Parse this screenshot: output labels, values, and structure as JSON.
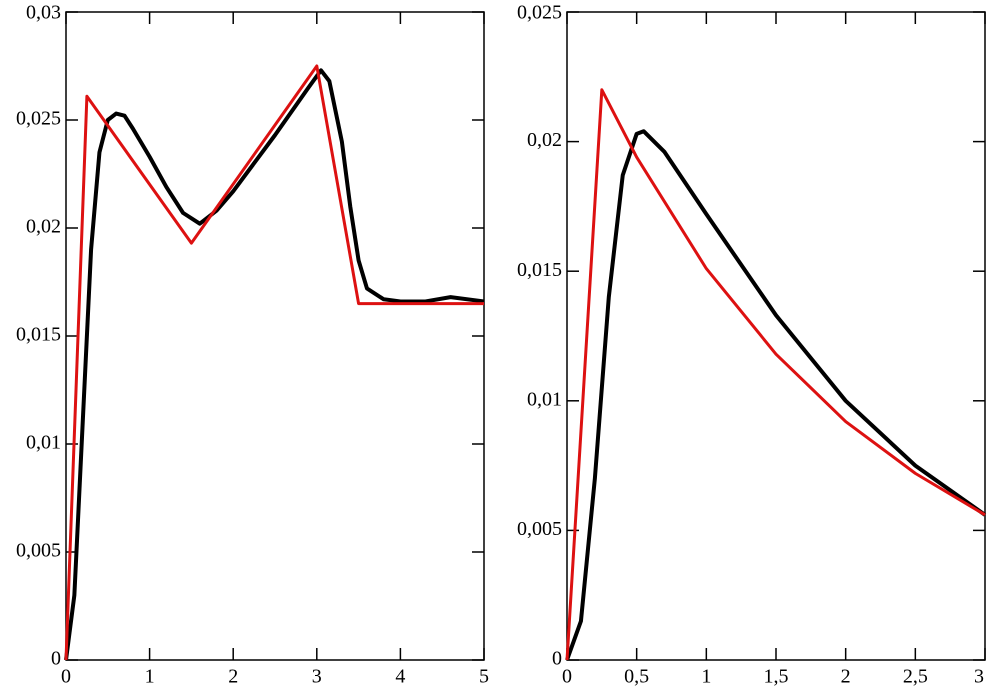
{
  "chart_data": [
    {
      "type": "line",
      "xlim": [
        0,
        5
      ],
      "ylim": [
        0,
        0.03
      ],
      "xticks": [
        0,
        1,
        2,
        3,
        4,
        5
      ],
      "yticks": [
        0,
        {
          "value": 0.005,
          "label": "0,005"
        },
        {
          "value": 0.01,
          "label": "0,01"
        },
        {
          "value": 0.015,
          "label": "0,015"
        },
        {
          "value": 0.02,
          "label": "0,02"
        },
        {
          "value": 0.025,
          "label": "0,025"
        },
        {
          "value": 0.03,
          "label": "0,03"
        }
      ],
      "series": [
        {
          "color": "#000000",
          "x": [
            0,
            0.1,
            0.2,
            0.3,
            0.4,
            0.5,
            0.6,
            0.7,
            0.8,
            1.0,
            1.2,
            1.4,
            1.6,
            1.8,
            2.0,
            2.5,
            2.9,
            3.05,
            3.15,
            3.3,
            3.4,
            3.5,
            3.6,
            3.8,
            4.0,
            4.3,
            4.6,
            5.0
          ],
          "values": [
            0,
            0.003,
            0.011,
            0.019,
            0.0235,
            0.025,
            0.0253,
            0.0252,
            0.0246,
            0.0233,
            0.0219,
            0.0207,
            0.0202,
            0.0208,
            0.0217,
            0.0243,
            0.0265,
            0.0273,
            0.0268,
            0.024,
            0.021,
            0.0185,
            0.0172,
            0.0167,
            0.0166,
            0.0166,
            0.0168,
            0.0166
          ]
        },
        {
          "color": "#dd1111",
          "x": [
            0,
            0.25,
            1.5,
            3,
            3.5,
            5
          ],
          "values": [
            0,
            0.0261,
            0.0193,
            0.0275,
            0.0165,
            0.0165
          ]
        }
      ]
    },
    {
      "type": "line",
      "xlim": [
        0,
        3
      ],
      "ylim": [
        0,
        0.025
      ],
      "xticks": [
        0,
        {
          "value": 0.5,
          "label": "0,5"
        },
        1,
        {
          "value": 1.5,
          "label": "1,5"
        },
        2,
        {
          "value": 2.5,
          "label": "2,5"
        },
        3
      ],
      "yticks": [
        0,
        {
          "value": 0.005,
          "label": "0,005"
        },
        {
          "value": 0.01,
          "label": "0,01"
        },
        {
          "value": 0.015,
          "label": "0,015"
        },
        {
          "value": 0.02,
          "label": "0,02"
        },
        {
          "value": 0.025,
          "label": "0,025"
        }
      ],
      "series": [
        {
          "color": "#000000",
          "x": [
            0,
            0.1,
            0.2,
            0.3,
            0.4,
            0.5,
            0.55,
            0.7,
            1.0,
            1.5,
            2.0,
            2.5,
            3.0
          ],
          "values": [
            0,
            0.0015,
            0.007,
            0.014,
            0.0187,
            0.0203,
            0.0204,
            0.0196,
            0.0172,
            0.0133,
            0.01,
            0.0075,
            0.0056
          ]
        },
        {
          "color": "#dd1111",
          "x": [
            0,
            0.25,
            0.5,
            1,
            1.5,
            2,
            2.5,
            3
          ],
          "values": [
            0,
            0.022,
            0.0194,
            0.0151,
            0.0118,
            0.0092,
            0.0072,
            0.0056
          ]
        }
      ]
    }
  ]
}
